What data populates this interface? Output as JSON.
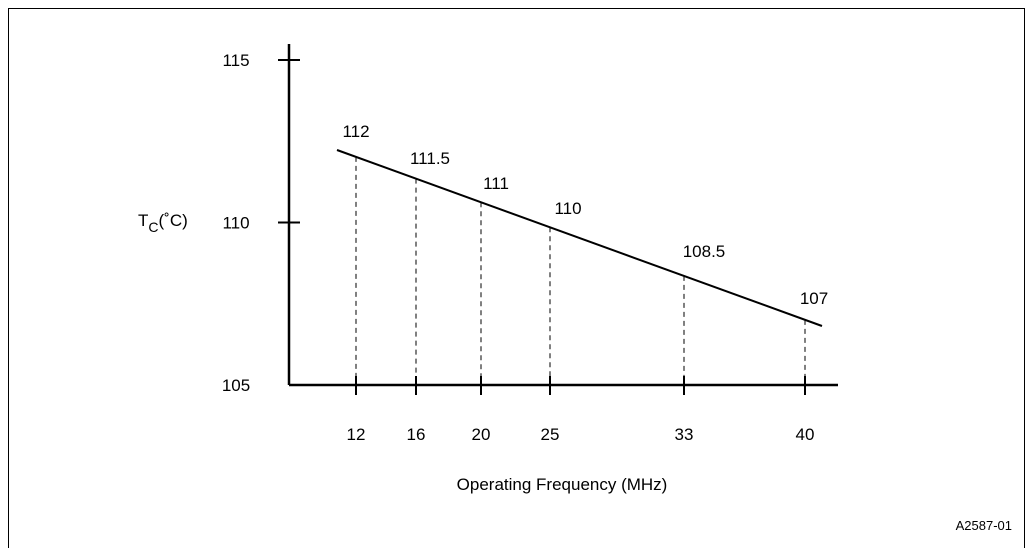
{
  "chart_data": {
    "type": "line",
    "title": "",
    "xlabel": "Operating Frequency (MHz)",
    "ylabel_main": "T",
    "ylabel_sub": "C",
    "ylabel_unit": "(˚C)",
    "y_ticks": [
      105,
      110,
      115
    ],
    "y_tick_labels": [
      "105",
      "110",
      "115"
    ],
    "x_tick_labels": [
      "12",
      "16",
      "20",
      "25",
      "33",
      "40"
    ],
    "ylim": [
      105,
      115
    ],
    "points": [
      {
        "x": 12,
        "y": 112,
        "label": "112"
      },
      {
        "x": 16,
        "y": 111.5,
        "label": "111.5"
      },
      {
        "x": 20,
        "y": 111,
        "label": "111"
      },
      {
        "x": 25,
        "y": 110,
        "label": "110"
      },
      {
        "x": 33,
        "y": 108.5,
        "label": "108.5"
      },
      {
        "x": 40,
        "y": 107,
        "label": "107"
      }
    ],
    "grid": false,
    "legend": "none"
  },
  "figure_id": "A2587-01"
}
